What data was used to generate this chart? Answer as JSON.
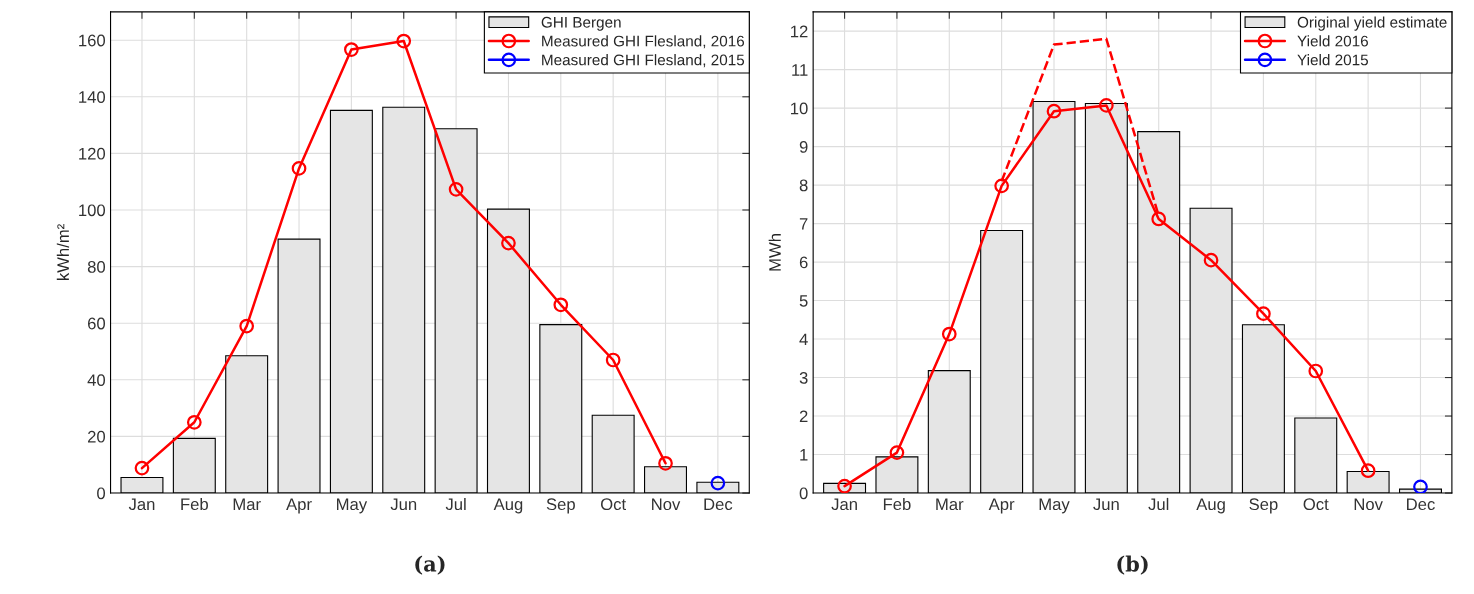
{
  "chart_data": [
    {
      "type": "bar",
      "title": "(a)",
      "ylabel": "kWh/m²",
      "categories": [
        "Jan",
        "Feb",
        "Mar",
        "Apr",
        "May",
        "Jun",
        "Jul",
        "Aug",
        "Sep",
        "Oct",
        "Nov",
        "Dec"
      ],
      "ylim": [
        0,
        170
      ],
      "yticks": [
        0,
        20,
        40,
        60,
        80,
        100,
        120,
        140,
        160
      ],
      "grid": true,
      "legend": "top right",
      "series": [
        {
          "name": "GHI Bergen",
          "color": "#e5e5e5",
          "values": [
            5.5,
            19.3,
            48.5,
            89.7,
            135.2,
            136.3,
            128.7,
            100.3,
            59.5,
            27.5,
            9.3,
            3.8
          ]
        },
        {
          "type": "line",
          "name": "Measured GHI Flesland, 2016",
          "color": "#ff0000",
          "marker": "circle",
          "line_style": "solid",
          "values": [
            8.8,
            25,
            59,
            114.7,
            156.7,
            159.7,
            107.3,
            88.3,
            66.5,
            47,
            10.5,
            null
          ]
        },
        {
          "type": "line",
          "name": "Measured GHI Flesland, 2015",
          "color": "#0000ff",
          "marker": "circle",
          "line_style": "solid",
          "values": [
            null,
            null,
            null,
            null,
            null,
            null,
            null,
            null,
            null,
            null,
            null,
            3.5
          ]
        }
      ]
    },
    {
      "type": "bar",
      "title": "(b)",
      "ylabel": "MWh",
      "categories": [
        "Jan",
        "Feb",
        "Mar",
        "Apr",
        "May",
        "Jun",
        "Jul",
        "Aug",
        "Sep",
        "Oct",
        "Nov",
        "Dec"
      ],
      "ylim": [
        0,
        12.5
      ],
      "yticks": [
        0,
        1,
        2,
        3,
        4,
        5,
        6,
        7,
        8,
        9,
        10,
        11,
        12
      ],
      "grid": true,
      "legend": "top right",
      "series": [
        {
          "name": "Original yield estimate",
          "color": "#e5e5e5",
          "values": [
            0.25,
            0.94,
            3.18,
            6.82,
            10.17,
            10.12,
            9.39,
            7.4,
            4.37,
            1.95,
            0.56,
            0.1
          ]
        },
        {
          "type": "line",
          "color": "#ff0000",
          "marker": "none",
          "line_style": "dashed",
          "values": [
            null,
            null,
            null,
            8.1,
            11.65,
            11.8,
            7.2,
            null,
            null,
            null,
            null,
            null
          ]
        },
        {
          "type": "line",
          "name": "Yield 2016",
          "color": "#ff0000",
          "marker": "circle",
          "line_style": "solid",
          "values": [
            0.18,
            1.05,
            4.13,
            7.98,
            9.92,
            10.07,
            7.12,
            6.05,
            4.66,
            3.17,
            0.58,
            null
          ]
        },
        {
          "type": "line",
          "name": "Yield 2015",
          "color": "#0000ff",
          "marker": "circle",
          "line_style": "solid",
          "values": [
            null,
            null,
            null,
            null,
            null,
            null,
            null,
            null,
            null,
            null,
            null,
            0.16
          ]
        }
      ]
    }
  ]
}
